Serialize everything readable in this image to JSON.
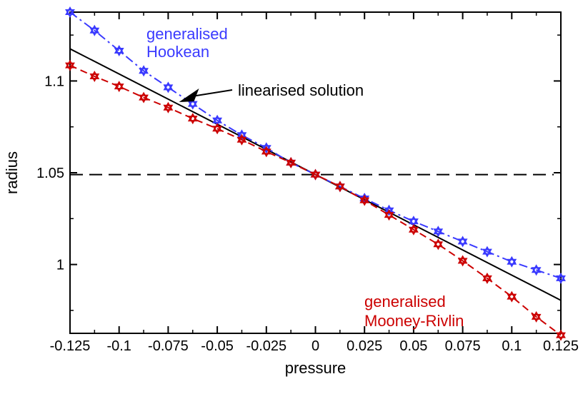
{
  "chart_data": {
    "type": "line",
    "xlabel": "pressure",
    "ylabel": "radius",
    "xlim": [
      -0.125,
      0.125
    ],
    "ylim": [
      0.9625,
      1.1375
    ],
    "grid": false,
    "x_ticks": [
      -0.125,
      -0.1,
      -0.075,
      -0.05,
      -0.025,
      0,
      0.025,
      0.05,
      0.075,
      0.1,
      0.125
    ],
    "x_tick_labels": [
      "-0.125",
      "-0.1",
      "-0.075",
      "-0.05",
      "-0.025",
      "0",
      "0.025",
      "0.05",
      "0.075",
      "0.1",
      "0.125"
    ],
    "y_ticks": [
      1.0,
      1.05,
      1.1
    ],
    "y_tick_labels": [
      "1",
      "1.05",
      "1.1"
    ],
    "x": [
      -0.125,
      -0.1125,
      -0.1,
      -0.0875,
      -0.075,
      -0.0625,
      -0.05,
      -0.0375,
      -0.025,
      -0.0125,
      0,
      0.0125,
      0.025,
      0.0375,
      0.05,
      0.0625,
      0.075,
      0.0875,
      0.1,
      0.1125,
      0.125
    ],
    "series": [
      {
        "style": "dash-dot with star markers",
        "color": "#3a3aff",
        "values": [
          1.1375,
          1.1275,
          1.1165,
          1.1055,
          1.0965,
          1.0875,
          1.0785,
          1.0705,
          1.0635,
          1.0555,
          1.049,
          1.0425,
          1.036,
          1.0295,
          1.0235,
          1.018,
          1.0125,
          1.007,
          1.0015,
          0.997,
          0.9925
        ]
      },
      {
        "style": "dashed with star markers",
        "color": "#cc0000",
        "values": [
          1.1085,
          1.1025,
          1.097,
          1.091,
          1.0855,
          1.0795,
          1.074,
          1.068,
          1.0615,
          1.0555,
          1.049,
          1.0425,
          1.035,
          1.027,
          1.019,
          1.011,
          1.002,
          0.9925,
          0.9825,
          0.9715,
          0.9615
        ]
      },
      {
        "style": "solid",
        "color": "#000000",
        "points": [
          [
            -0.125,
            1.1175
          ],
          [
            0.125,
            0.9805
          ]
        ]
      }
    ],
    "reference_line": {
      "style": "dashed",
      "color": "#000000",
      "y": 1.049
    },
    "annotations": [
      {
        "text_lines": [
          "generalised",
          "Hookean"
        ],
        "color": "#3a3aff"
      },
      {
        "text_lines": [
          "linearised solution"
        ],
        "color": "#000000",
        "arrow_to": [
          -0.0695,
          1.0885
        ]
      },
      {
        "text_lines": [
          "generalised",
          "Mooney-Rivlin"
        ],
        "color": "#cc0000"
      }
    ]
  }
}
